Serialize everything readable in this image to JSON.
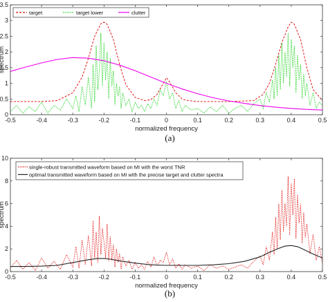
{
  "chart_data": [
    {
      "type": "line",
      "panel_label": "(a)",
      "xlabel": "normalized frequency",
      "ylabel": "spectrum",
      "xlim": [
        -0.5,
        0.5
      ],
      "ylim": [
        0,
        3.5
      ],
      "xticks": [
        "-0.5",
        "-0.4",
        "-0.3",
        "-0.2",
        "-0.1",
        "0",
        "0.1",
        "0.2",
        "0.3",
        "0.4",
        "0.5"
      ],
      "yticks": [
        "0",
        "0.5",
        "1",
        "1.5",
        "2",
        "2.5",
        "3",
        "3.5"
      ],
      "grid": false,
      "legend": {
        "position": "top-left",
        "orientation": "horizontal"
      },
      "series": [
        {
          "name": "target",
          "color": "#e00000",
          "style": "dashed",
          "x": [
            -0.5,
            -0.4,
            -0.35,
            -0.3,
            -0.27,
            -0.25,
            -0.23,
            -0.21,
            -0.2,
            -0.19,
            -0.17,
            -0.15,
            -0.13,
            -0.1,
            -0.07,
            -0.05,
            -0.03,
            -0.01,
            0,
            0.01,
            0.03,
            0.05,
            0.07,
            0.1,
            0.2,
            0.28,
            0.31,
            0.33,
            0.35,
            0.37,
            0.39,
            0.4,
            0.41,
            0.43,
            0.45,
            0.47,
            0.5
          ],
          "y": [
            0.42,
            0.42,
            0.45,
            0.7,
            1.2,
            1.8,
            2.5,
            2.9,
            2.95,
            2.88,
            2.4,
            1.6,
            0.95,
            0.55,
            0.45,
            0.48,
            0.65,
            1.0,
            1.18,
            1.05,
            0.7,
            0.5,
            0.45,
            0.42,
            0.42,
            0.45,
            0.65,
            1.0,
            1.6,
            2.3,
            2.8,
            2.95,
            2.88,
            2.4,
            1.5,
            0.8,
            0.45
          ]
        },
        {
          "name": "target lower",
          "color": "#00cc00",
          "style": "dotted",
          "x": [
            -0.5,
            -0.48,
            -0.46,
            -0.44,
            -0.42,
            -0.4,
            -0.38,
            -0.36,
            -0.34,
            -0.32,
            -0.3,
            -0.29,
            -0.28,
            -0.27,
            -0.26,
            -0.25,
            -0.24,
            -0.235,
            -0.23,
            -0.225,
            -0.22,
            -0.215,
            -0.21,
            -0.205,
            -0.2,
            -0.195,
            -0.19,
            -0.185,
            -0.18,
            -0.175,
            -0.17,
            -0.165,
            -0.16,
            -0.155,
            -0.15,
            -0.145,
            -0.14,
            -0.13,
            -0.12,
            -0.11,
            -0.1,
            -0.09,
            -0.08,
            -0.07,
            -0.06,
            -0.05,
            -0.04,
            -0.03,
            -0.02,
            -0.01,
            0,
            0.01,
            0.02,
            0.03,
            0.04,
            0.05,
            0.06,
            0.08,
            0.1,
            0.12,
            0.14,
            0.16,
            0.18,
            0.2,
            0.22,
            0.24,
            0.26,
            0.28,
            0.3,
            0.31,
            0.32,
            0.33,
            0.34,
            0.345,
            0.35,
            0.355,
            0.36,
            0.365,
            0.37,
            0.375,
            0.38,
            0.385,
            0.39,
            0.395,
            0.4,
            0.405,
            0.41,
            0.415,
            0.42,
            0.425,
            0.43,
            0.435,
            0.44,
            0.445,
            0.45,
            0.46,
            0.47,
            0.48,
            0.49,
            0.5
          ],
          "y": [
            0.1,
            0.3,
            0.05,
            0.25,
            0.1,
            0.4,
            0.05,
            0.3,
            0.15,
            0.5,
            0.2,
            0.6,
            0.1,
            0.9,
            0.3,
            1.2,
            0.2,
            1.6,
            0.4,
            2.2,
            0.8,
            1.4,
            2.6,
            0.9,
            2.3,
            1.1,
            2.0,
            0.5,
            1.8,
            0.9,
            1.4,
            0.3,
            1.0,
            0.6,
            0.9,
            0.2,
            0.7,
            0.3,
            0.5,
            0.1,
            0.4,
            0.2,
            0.3,
            0.1,
            0.35,
            0.2,
            0.5,
            0.3,
            0.8,
            0.6,
            1.05,
            0.5,
            0.7,
            0.2,
            0.45,
            0.1,
            0.3,
            0.15,
            0.2,
            0.05,
            0.25,
            0.1,
            0.3,
            0.05,
            0.2,
            0.3,
            0.1,
            0.35,
            0.5,
            0.2,
            0.7,
            0.4,
            1.1,
            0.5,
            1.5,
            0.6,
            1.9,
            0.8,
            2.3,
            1.0,
            2.0,
            1.2,
            2.6,
            0.9,
            2.4,
            1.5,
            2.2,
            0.7,
            1.9,
            1.1,
            1.6,
            0.5,
            1.3,
            0.6,
            1.0,
            0.3,
            0.7,
            0.2,
            0.4,
            0.3
          ]
        },
        {
          "name": "clutter",
          "color": "#ee00ee",
          "style": "solid",
          "x": [
            -0.5,
            -0.45,
            -0.4,
            -0.35,
            -0.3,
            -0.25,
            -0.2,
            -0.15,
            -0.1,
            -0.05,
            0,
            0.05,
            0.1,
            0.15,
            0.2,
            0.25,
            0.3,
            0.35,
            0.4,
            0.45,
            0.5
          ],
          "y": [
            1.38,
            1.52,
            1.65,
            1.76,
            1.82,
            1.8,
            1.72,
            1.58,
            1.4,
            1.2,
            1.0,
            0.82,
            0.67,
            0.54,
            0.44,
            0.36,
            0.29,
            0.24,
            0.2,
            0.17,
            0.15
          ]
        }
      ]
    },
    {
      "type": "line",
      "panel_label": "(b)",
      "xlabel": "normalized frequency",
      "ylabel": "spectrum",
      "xlim": [
        -0.5,
        0.5
      ],
      "ylim": [
        0,
        10
      ],
      "xticks": [
        "-0.5",
        "-0.4",
        "-0.3",
        "-0.2",
        "-0.1",
        "0",
        "0.1",
        "0.2",
        "0.3",
        "0.4",
        "0.5"
      ],
      "yticks": [
        "0",
        "2",
        "4",
        "6",
        "8",
        "10"
      ],
      "grid": false,
      "legend": {
        "position": "top-left",
        "orientation": "vertical"
      },
      "series": [
        {
          "name": "single-robust transmitted waveform based on MI with the worst TNR",
          "color": "#e00000",
          "style": "dotted",
          "x": [
            -0.5,
            -0.48,
            -0.46,
            -0.44,
            -0.42,
            -0.4,
            -0.38,
            -0.36,
            -0.34,
            -0.32,
            -0.3,
            -0.29,
            -0.28,
            -0.27,
            -0.26,
            -0.25,
            -0.24,
            -0.235,
            -0.23,
            -0.225,
            -0.22,
            -0.215,
            -0.21,
            -0.205,
            -0.2,
            -0.195,
            -0.19,
            -0.185,
            -0.18,
            -0.175,
            -0.17,
            -0.165,
            -0.16,
            -0.155,
            -0.15,
            -0.145,
            -0.14,
            -0.13,
            -0.12,
            -0.11,
            -0.1,
            -0.09,
            -0.08,
            -0.07,
            -0.06,
            -0.05,
            -0.04,
            -0.03,
            -0.02,
            -0.01,
            0,
            0.01,
            0.02,
            0.03,
            0.04,
            0.05,
            0.06,
            0.08,
            0.1,
            0.12,
            0.14,
            0.16,
            0.18,
            0.2,
            0.22,
            0.24,
            0.26,
            0.28,
            0.3,
            0.31,
            0.32,
            0.33,
            0.34,
            0.345,
            0.35,
            0.355,
            0.36,
            0.365,
            0.37,
            0.375,
            0.38,
            0.385,
            0.39,
            0.395,
            0.4,
            0.405,
            0.41,
            0.415,
            0.42,
            0.425,
            0.43,
            0.435,
            0.44,
            0.445,
            0.45,
            0.46,
            0.47,
            0.48,
            0.49,
            0.5
          ],
          "y": [
            0.3,
            1.0,
            0.2,
            0.8,
            0.1,
            1.2,
            0.3,
            0.9,
            0.2,
            1.5,
            0.4,
            2.2,
            0.3,
            2.8,
            0.6,
            3.2,
            0.5,
            4.5,
            1.2,
            3.5,
            0.8,
            4.9,
            1.5,
            3.8,
            2.6,
            1.2,
            4.2,
            0.9,
            3.1,
            1.0,
            2.4,
            0.4,
            2.0,
            0.8,
            1.6,
            0.2,
            1.3,
            0.5,
            1.0,
            0.2,
            0.8,
            0.3,
            0.6,
            0.2,
            0.9,
            0.4,
            1.3,
            0.5,
            1.0,
            0.8,
            1.7,
            0.6,
            1.1,
            0.3,
            0.7,
            0.2,
            0.6,
            0.3,
            0.5,
            0.1,
            0.6,
            0.3,
            0.5,
            0.2,
            0.4,
            0.6,
            0.3,
            0.9,
            1.4,
            0.6,
            2.2,
            1.0,
            3.5,
            1.5,
            4.8,
            2.0,
            6.0,
            2.8,
            7.2,
            3.5,
            6.0,
            4.0,
            8.4,
            3.2,
            7.8,
            5.0,
            8.2,
            2.9,
            6.8,
            4.3,
            6.0,
            2.5,
            5.2,
            3.0,
            4.2,
            1.6,
            3.3,
            1.0,
            2.2,
            0.7
          ]
        },
        {
          "name": "optimal transmitted waveform based on MI with the precise target and clutter spectra",
          "color": "#222222",
          "style": "solid",
          "x": [
            -0.5,
            -0.45,
            -0.4,
            -0.35,
            -0.3,
            -0.25,
            -0.22,
            -0.2,
            -0.18,
            -0.15,
            -0.1,
            -0.05,
            0,
            0.05,
            0.1,
            0.15,
            0.2,
            0.25,
            0.3,
            0.33,
            0.36,
            0.38,
            0.4,
            0.42,
            0.44,
            0.47,
            0.5
          ],
          "y": [
            0.45,
            0.45,
            0.48,
            0.55,
            0.8,
            1.05,
            1.15,
            1.15,
            1.1,
            0.95,
            0.75,
            0.6,
            0.55,
            0.55,
            0.55,
            0.6,
            0.7,
            0.9,
            1.3,
            1.7,
            2.05,
            2.25,
            2.3,
            2.2,
            1.95,
            1.55,
            1.2
          ]
        }
      ]
    }
  ]
}
